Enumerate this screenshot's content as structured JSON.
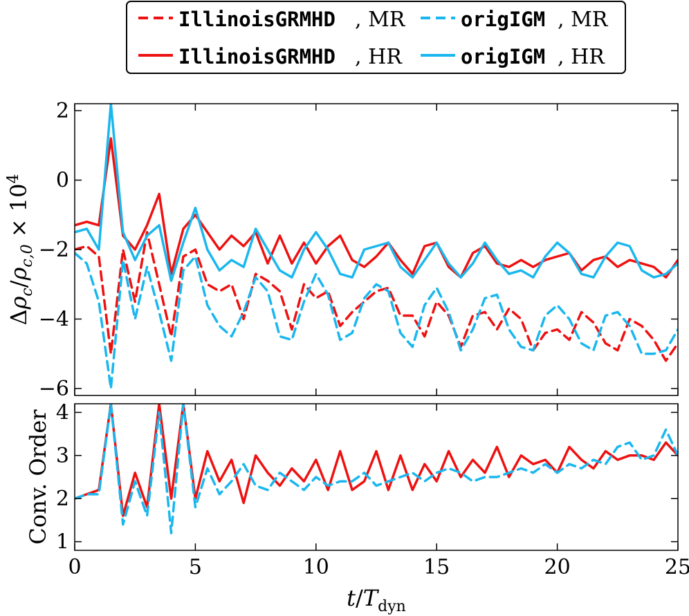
{
  "colors": {
    "illinois": "#ee1111",
    "origigm": "#1ab7ee",
    "axis": "#000000"
  },
  "legend": {
    "entries": [
      {
        "code": "IllinoisGRMHD",
        "suffix": ", MR",
        "color": "#ee1111",
        "dash": true
      },
      {
        "code": "origIGM",
        "suffix": ", MR",
        "color": "#1ab7ee",
        "dash": true
      },
      {
        "code": "IllinoisGRMHD",
        "suffix": ", HR",
        "color": "#ee1111",
        "dash": false
      },
      {
        "code": "origIGM",
        "suffix": ", HR",
        "color": "#1ab7ee",
        "dash": false
      }
    ]
  },
  "chart_data": [
    {
      "type": "line",
      "name": "density-deviation",
      "ylabel": "Δρ_c/ρ_c,0 × 10^4",
      "ylabel_parts": {
        "delta": "Δ",
        "rho": "ρ",
        "sub_c": "c",
        "slash": "/",
        "sub_c0": "c,0",
        "times": " × 10",
        "exp": "4"
      },
      "xlabel": "",
      "xlim": [
        0,
        25
      ],
      "ylim": [
        -6.2,
        2.2
      ],
      "yticks": [
        -6,
        -4,
        -2,
        0,
        2
      ],
      "ytick_labels": [
        "−6",
        "−4",
        "−2",
        "0",
        "2"
      ],
      "x": [
        0,
        0.5,
        1.0,
        1.5,
        2.0,
        2.5,
        3.0,
        3.5,
        4.0,
        4.5,
        5.0,
        5.5,
        6.0,
        6.5,
        7.0,
        7.5,
        8.0,
        8.5,
        9.0,
        9.5,
        10.0,
        10.5,
        11.0,
        11.5,
        12.0,
        12.5,
        13.0,
        13.5,
        14.0,
        14.5,
        15.0,
        15.5,
        16.0,
        16.5,
        17.0,
        17.5,
        18.0,
        18.5,
        19.0,
        19.5,
        20.0,
        20.5,
        21.0,
        21.5,
        22.0,
        22.5,
        23.0,
        23.5,
        24.0,
        24.5,
        25.0
      ],
      "series": [
        {
          "name": "IllinoisGRMHD, MR",
          "color": "#ee1111",
          "dash": true,
          "values": [
            -2.0,
            -1.9,
            -2.2,
            -5.0,
            -2.0,
            -3.5,
            -1.5,
            -3.0,
            -4.5,
            -2.2,
            -2.0,
            -3.0,
            -3.2,
            -3.0,
            -4.0,
            -2.7,
            -2.9,
            -3.2,
            -4.3,
            -3.0,
            -3.4,
            -3.2,
            -4.2,
            -3.8,
            -3.5,
            -3.2,
            -3.1,
            -3.9,
            -3.9,
            -4.5,
            -3.5,
            -3.9,
            -4.8,
            -3.9,
            -3.8,
            -4.3,
            -3.7,
            -4.0,
            -4.9,
            -4.4,
            -4.3,
            -4.6,
            -3.8,
            -4.1,
            -4.7,
            -4.9,
            -4.0,
            -4.2,
            -4.6,
            -5.2,
            -4.7
          ]
        },
        {
          "name": "origIGM, MR",
          "color": "#1ab7ee",
          "dash": true,
          "values": [
            -2.1,
            -2.4,
            -3.5,
            -6.0,
            -2.3,
            -4.0,
            -2.5,
            -3.8,
            -5.2,
            -2.6,
            -2.2,
            -3.6,
            -4.2,
            -4.5,
            -3.8,
            -2.8,
            -3.2,
            -4.5,
            -4.6,
            -3.5,
            -2.7,
            -3.3,
            -4.6,
            -4.4,
            -3.4,
            -3.0,
            -3.2,
            -4.4,
            -4.8,
            -3.6,
            -3.1,
            -3.8,
            -4.9,
            -4.3,
            -3.4,
            -3.3,
            -4.3,
            -4.8,
            -4.9,
            -3.9,
            -3.6,
            -4.0,
            -4.7,
            -4.9,
            -3.9,
            -3.8,
            -4.2,
            -5.0,
            -5.0,
            -4.9,
            -4.3
          ]
        },
        {
          "name": "IllinoisGRMHD, HR",
          "color": "#ee1111",
          "dash": false,
          "values": [
            -1.3,
            -1.2,
            -1.3,
            1.2,
            -1.6,
            -2.0,
            -1.3,
            -0.4,
            -2.7,
            -1.4,
            -1.0,
            -1.5,
            -2.0,
            -1.6,
            -1.9,
            -1.5,
            -2.4,
            -1.6,
            -2.4,
            -1.8,
            -2.4,
            -1.9,
            -1.6,
            -2.3,
            -2.5,
            -2.2,
            -1.8,
            -2.3,
            -2.7,
            -1.9,
            -1.8,
            -2.5,
            -2.8,
            -2.1,
            -1.9,
            -2.4,
            -2.5,
            -2.3,
            -2.5,
            -2.3,
            -2.2,
            -2.1,
            -2.6,
            -2.3,
            -2.2,
            -2.5,
            -2.3,
            -2.4,
            -2.5,
            -2.8,
            -2.3
          ]
        },
        {
          "name": "origIGM, HR",
          "color": "#1ab7ee",
          "dash": false,
          "values": [
            -1.5,
            -1.4,
            -2.0,
            2.2,
            -1.5,
            -2.3,
            -1.6,
            -1.3,
            -2.9,
            -1.8,
            -0.8,
            -2.0,
            -2.6,
            -2.3,
            -2.5,
            -1.4,
            -2.0,
            -2.6,
            -2.8,
            -2.0,
            -1.5,
            -2.0,
            -2.7,
            -2.8,
            -2.0,
            -1.9,
            -1.8,
            -2.5,
            -2.8,
            -2.3,
            -1.8,
            -2.4,
            -2.8,
            -2.4,
            -1.8,
            -2.3,
            -2.7,
            -2.6,
            -2.8,
            -2.2,
            -1.8,
            -2.1,
            -2.7,
            -2.8,
            -2.2,
            -1.8,
            -1.9,
            -2.6,
            -2.8,
            -2.7,
            -2.4
          ]
        }
      ]
    },
    {
      "type": "line",
      "name": "convergence-order",
      "ylabel": "Conv. Order",
      "xlabel": "t/T_dyn",
      "xlabel_parts": {
        "t": "t",
        "slash": "/",
        "T": "T",
        "sub": "dyn"
      },
      "xlim": [
        0,
        25
      ],
      "ylim": [
        0.8,
        4.2
      ],
      "yticks": [
        1,
        2,
        3,
        4
      ],
      "ytick_labels": [
        "1",
        "2",
        "3",
        "4"
      ],
      "xticks": [
        0,
        5,
        10,
        15,
        20,
        25
      ],
      "xtick_labels": [
        "0",
        "5",
        "10",
        "15",
        "20",
        "25"
      ],
      "x": [
        0,
        0.5,
        1.0,
        1.5,
        2.0,
        2.5,
        3.0,
        3.5,
        4.0,
        4.5,
        5.0,
        5.5,
        6.0,
        6.5,
        7.0,
        7.5,
        8.0,
        8.5,
        9.0,
        9.5,
        10.0,
        10.5,
        11.0,
        11.5,
        12.0,
        12.5,
        13.0,
        13.5,
        14.0,
        14.5,
        15.0,
        15.5,
        16.0,
        16.5,
        17.0,
        17.5,
        18.0,
        18.5,
        19.0,
        19.5,
        20.0,
        20.5,
        21.0,
        21.5,
        22.0,
        22.5,
        23.0,
        23.5,
        24.0,
        24.5,
        25.0
      ],
      "series": [
        {
          "name": "IllinoisGRMHD, MR/HR",
          "color": "#ee1111",
          "dash": false,
          "values": [
            2.0,
            2.1,
            2.2,
            4.2,
            1.6,
            2.6,
            1.8,
            4.2,
            2.0,
            4.2,
            2.0,
            3.1,
            2.4,
            2.9,
            1.9,
            3.0,
            2.6,
            2.3,
            2.7,
            2.4,
            2.9,
            2.2,
            3.1,
            2.2,
            2.4,
            3.1,
            2.2,
            3.0,
            2.2,
            2.8,
            2.4,
            3.1,
            2.5,
            2.9,
            2.6,
            3.2,
            2.5,
            3.0,
            2.8,
            2.9,
            2.6,
            3.2,
            2.9,
            2.7,
            3.1,
            2.9,
            3.0,
            3.0,
            2.9,
            3.3,
            3.0
          ]
        },
        {
          "name": "origIGM, MR/HR",
          "color": "#1ab7ee",
          "dash": true,
          "values": [
            2.0,
            2.1,
            2.1,
            4.2,
            1.4,
            2.4,
            1.6,
            4.0,
            1.2,
            4.2,
            1.8,
            2.7,
            2.1,
            2.4,
            2.8,
            2.3,
            2.2,
            2.6,
            2.4,
            2.2,
            2.5,
            2.3,
            2.4,
            2.4,
            2.6,
            2.3,
            2.4,
            2.5,
            2.6,
            2.4,
            2.6,
            2.7,
            2.6,
            2.4,
            2.5,
            2.5,
            2.6,
            2.7,
            2.6,
            2.8,
            2.6,
            2.8,
            2.7,
            2.9,
            2.8,
            3.2,
            3.3,
            2.9,
            3.0,
            3.6,
            3.0
          ]
        }
      ]
    }
  ]
}
